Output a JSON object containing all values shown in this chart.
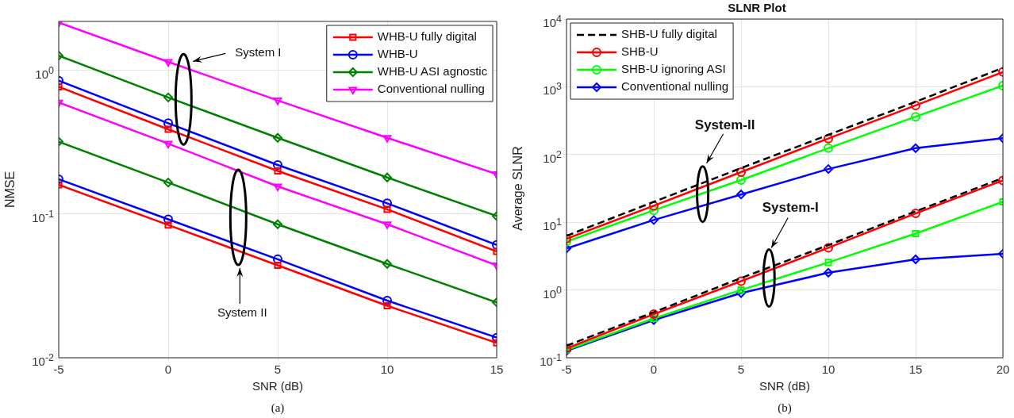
{
  "chart_data": [
    {
      "type": "line",
      "xlabel": "SNR (dB)",
      "ylabel": "NMSE",
      "log": "y",
      "grid": true,
      "legend": "top right",
      "x": [
        -5,
        0,
        5,
        10,
        15
      ],
      "xlim": [
        -5,
        15
      ],
      "xticks": [
        -5,
        0,
        5,
        10,
        15
      ],
      "ylim": [
        0.01,
        2.2
      ],
      "yticks": [
        {
          "value": 0.01,
          "label": "10$^{-2}$"
        },
        {
          "value": 0.1,
          "label": "10$^{-1}$"
        },
        {
          "value": 1,
          "label": "10$^{0}$"
        }
      ],
      "series": [
        {
          "name": "WHB-U fully digital",
          "color": "#ff0000",
          "marker": "square",
          "values": [
            0.77,
            0.39,
            0.2,
            0.108,
            0.055
          ]
        },
        {
          "name": "WHB-U",
          "color": "#0000ff",
          "marker": "circle",
          "values": [
            0.85,
            0.43,
            0.22,
            0.119,
            0.061
          ]
        },
        {
          "name": "WHB-U ASI agnostic",
          "color": "#008000",
          "marker": "diamond",
          "values": [
            1.27,
            0.65,
            0.34,
            0.18,
            0.097
          ]
        },
        {
          "name": "Conventional nulling",
          "color": "#ff00ff",
          "marker": "triangle",
          "values": [
            2.16,
            1.15,
            0.62,
            0.34,
            0.19
          ]
        },
        {
          "color": "#ff0000",
          "marker": "square",
          "values": [
            0.16,
            0.084,
            0.044,
            0.023,
            0.0127
          ]
        },
        {
          "color": "#0000ff",
          "marker": "circle",
          "values": [
            0.175,
            0.092,
            0.0485,
            0.025,
            0.0138
          ]
        },
        {
          "color": "#008000",
          "marker": "diamond",
          "values": [
            0.32,
            0.166,
            0.085,
            0.045,
            0.0243
          ]
        },
        {
          "color": "#ff00ff",
          "marker": "triangle",
          "values": [
            0.6,
            0.31,
            0.156,
            0.085,
            0.044
          ]
        }
      ],
      "annotations": [
        "System I",
        "System II",
        "(a)"
      ]
    },
    {
      "type": "line",
      "title": "SLNR Plot",
      "xlabel": "SNR (dB)",
      "ylabel": "Average SLNR",
      "log": "y",
      "grid": true,
      "legend": "top left",
      "x": [
        -5,
        0,
        5,
        10,
        15,
        20
      ],
      "xlim": [
        -5,
        20
      ],
      "xticks": [
        -5,
        0,
        5,
        10,
        15,
        20
      ],
      "ylim": [
        0.1,
        10000
      ],
      "yticks": [
        {
          "value": 0.1,
          "label": "10$^{-1}$"
        },
        {
          "value": 1,
          "label": "10$^{0}$"
        },
        {
          "value": 10,
          "label": "10$^{1}$"
        },
        {
          "value": 100,
          "label": "10$^{2}$"
        },
        {
          "value": 1000,
          "label": "10$^{3}$"
        },
        {
          "value": 10000,
          "label": "10$^{4}$"
        }
      ],
      "series": [
        {
          "name": "SHB-U fully digital",
          "color": "#000000",
          "marker": "none",
          "line_style": "dashed",
          "values": [
            6.3,
            20,
            63,
            195,
            600,
            1900
          ]
        },
        {
          "name": "SHB-U",
          "color": "#ff0000",
          "marker": "circle",
          "values": [
            5.7,
            17.5,
            55,
            172,
            530,
            1650
          ]
        },
        {
          "name": "SHB-U ignoring ASI",
          "color": "#00ff00",
          "marker": "circle",
          "values": [
            5.2,
            15,
            42,
            124,
            361,
            1040
          ]
        },
        {
          "name": "Conventional nulling",
          "color": "#0000ff",
          "marker": "diamond",
          "values": [
            4.1,
            10.8,
            25.7,
            61,
            124,
            174
          ]
        },
        {
          "color": "#000000",
          "marker": "none",
          "line_style": "dashed",
          "values": [
            0.15,
            0.47,
            1.5,
            4.6,
            14.5,
            45
          ]
        },
        {
          "color": "#ff0000",
          "marker": "circle",
          "values": [
            0.137,
            0.44,
            1.35,
            4.2,
            13.5,
            41.5
          ]
        },
        {
          "color": "#00ff00",
          "marker": "square",
          "values": [
            0.13,
            0.38,
            1.0,
            2.55,
            6.8,
            20
          ]
        },
        {
          "color": "#0000ff",
          "marker": "diamond",
          "values": [
            0.126,
            0.36,
            0.9,
            1.8,
            2.83,
            3.43
          ]
        }
      ],
      "annotations": [
        "System-II",
        "System-I",
        "(b)"
      ]
    }
  ]
}
